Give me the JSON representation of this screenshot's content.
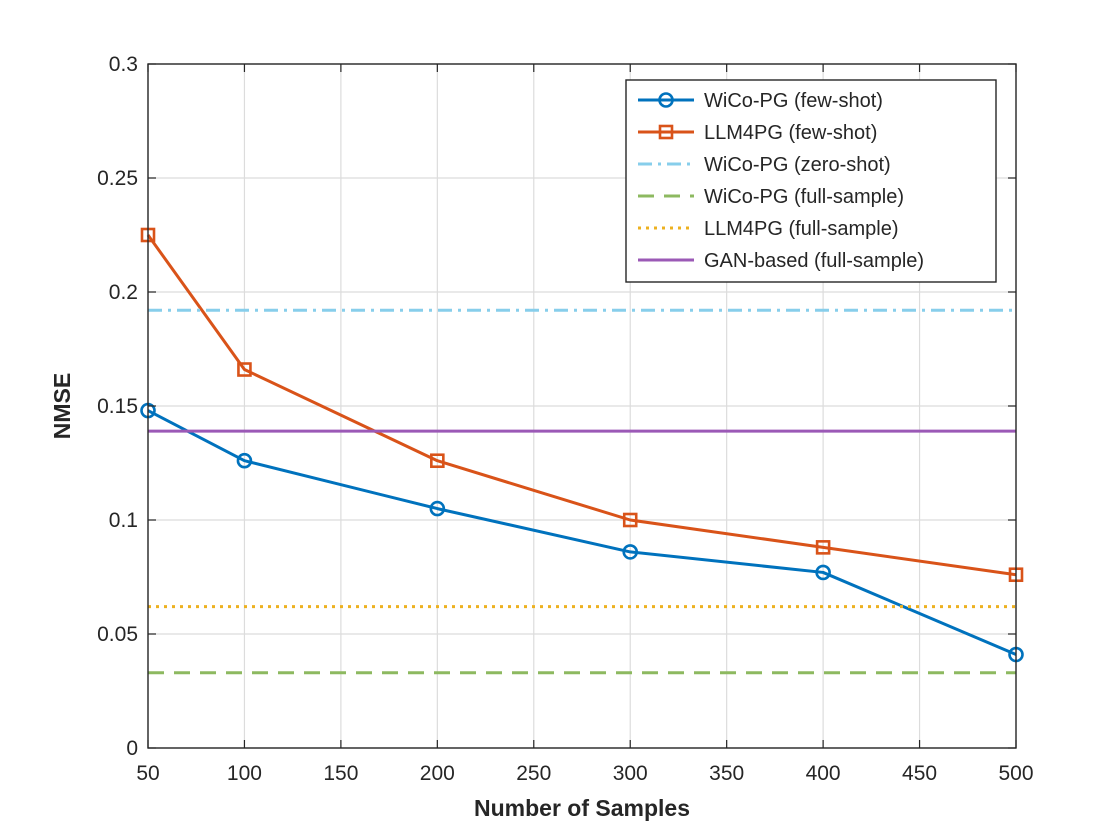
{
  "chart_data": {
    "type": "line",
    "title": "",
    "xlabel": "Number of Samples",
    "ylabel": "NMSE",
    "xlim": [
      50,
      500
    ],
    "ylim": [
      0,
      0.3
    ],
    "xticks": [
      50,
      100,
      150,
      200,
      250,
      300,
      350,
      400,
      450,
      500
    ],
    "xtick_labels": [
      "50",
      "100",
      "150",
      "200",
      "250",
      "300",
      "350",
      "400",
      "450",
      "500"
    ],
    "yticks": [
      0,
      0.05,
      0.1,
      0.15,
      0.2,
      0.25,
      0.3
    ],
    "ytick_labels": [
      "0",
      "0.05",
      "0.1",
      "0.15",
      "0.2",
      "0.25",
      "0.3"
    ],
    "grid": true,
    "legend_position": "top-right",
    "series": [
      {
        "name": "WiCo-PG (few-shot)",
        "color": "#0072BD",
        "line_style": "solid",
        "marker": "circle",
        "x": [
          50,
          100,
          200,
          300,
          400,
          500
        ],
        "y": [
          0.148,
          0.126,
          0.105,
          0.086,
          0.077,
          0.041
        ]
      },
      {
        "name": "LLM4PG (few-shot)",
        "color": "#D95319",
        "line_style": "solid",
        "marker": "square",
        "x": [
          50,
          100,
          200,
          300,
          400,
          500
        ],
        "y": [
          0.225,
          0.166,
          0.126,
          0.1,
          0.088,
          0.076
        ]
      },
      {
        "name": "WiCo-PG (zero-shot)",
        "color": "#87CEEB",
        "line_style": "dashdot",
        "marker": "none",
        "x": [
          50,
          500
        ],
        "y": [
          0.192,
          0.192
        ]
      },
      {
        "name": "WiCo-PG (full-sample)",
        "color": "#8DB960",
        "line_style": "dashed",
        "marker": "none",
        "x": [
          50,
          500
        ],
        "y": [
          0.033,
          0.033
        ]
      },
      {
        "name": "LLM4PG (full-sample)",
        "color": "#EDB120",
        "line_style": "dotted",
        "marker": "none",
        "x": [
          50,
          500
        ],
        "y": [
          0.062,
          0.062
        ]
      },
      {
        "name": "GAN-based (full-sample)",
        "color": "#9B59B6",
        "line_style": "solid",
        "marker": "none",
        "x": [
          50,
          500
        ],
        "y": [
          0.139,
          0.139
        ]
      }
    ]
  }
}
